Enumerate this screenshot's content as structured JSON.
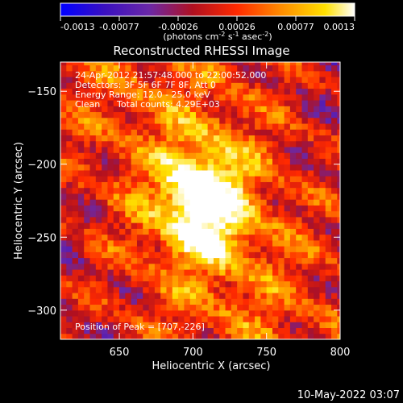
{
  "chart_data": {
    "type": "heatmap",
    "title": "Reconstructed RHESSI Image",
    "xlabel": "Heliocentric X (arcsec)",
    "ylabel": "Heliocentric Y (arcsec)",
    "xlim": [
      610,
      800
    ],
    "ylim": [
      -320,
      -130
    ],
    "x_ticks": [
      "650",
      "700",
      "750",
      "800"
    ],
    "y_ticks": [
      "-150",
      "-200",
      "-250",
      "-300"
    ],
    "colorbar": {
      "range": [
        -0.0013,
        0.0013
      ],
      "tick_labels": [
        "-0.0013",
        "-0.00077",
        "-0.00026",
        "0.00026",
        "0.00077",
        "0.0013"
      ],
      "label": "(photons cm⁻² s⁻¹ asec⁻²)",
      "colormap": [
        "#0000ff",
        "#3a10c0",
        "#6a28a8",
        "#b01020",
        "#ff2a00",
        "#ff8c00",
        "#ffe000",
        "#ffffff"
      ]
    },
    "annotations": {
      "time_range": "24-Apr-2012 21:57:48.000 to 22:00:52.000",
      "detectors": "Detectors: 3F 5F 6F 7F 8F, Att 0",
      "energy": "Energy Range: 12.0 - 25.0 keV",
      "method": "Clean",
      "counts": "Total counts: 4.29E+03",
      "peak": "Position of Peak = [707,-226]"
    },
    "peak_position": [
      707,
      -226
    ],
    "footer_date": "10-May-2022 03:07"
  }
}
